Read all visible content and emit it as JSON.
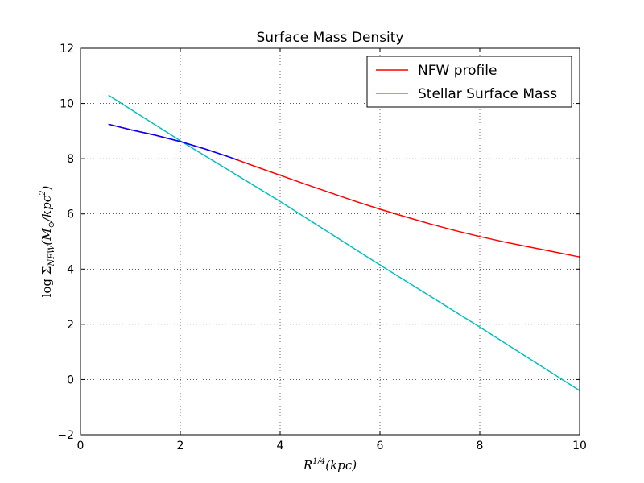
{
  "chart_data": {
    "type": "line",
    "title": "Surface Mass Density",
    "xlabel": "R^{1/4}(kpc)",
    "ylabel": "log Σ_{NFW}(M_⊙/kpc^2)",
    "xlim": [
      0,
      10
    ],
    "ylim": [
      -2,
      12
    ],
    "xticks": [
      0,
      2,
      4,
      6,
      8,
      10
    ],
    "yticks": [
      -2,
      0,
      2,
      4,
      6,
      8,
      10,
      12
    ],
    "xtick_labels": [
      "0",
      "2",
      "4",
      "6",
      "8",
      "10"
    ],
    "ytick_labels": [
      "−2",
      "0",
      "2",
      "4",
      "6",
      "8",
      "10",
      "12"
    ],
    "grid": true,
    "legend_position": "top-right",
    "series": [
      {
        "name": "NFW profile",
        "color": "#ff0000",
        "x": [
          0.56,
          1.0,
          1.5,
          2.0,
          2.5,
          3.0,
          3.5,
          4.0,
          4.5,
          5.0,
          5.5,
          6.0,
          6.5,
          7.0,
          7.5,
          8.0,
          8.5,
          9.0,
          9.5,
          10.0
        ],
        "y": [
          9.25,
          9.05,
          8.85,
          8.62,
          8.35,
          8.05,
          7.72,
          7.4,
          7.08,
          6.77,
          6.46,
          6.17,
          5.9,
          5.64,
          5.4,
          5.18,
          4.98,
          4.8,
          4.62,
          4.44
        ]
      },
      {
        "name": "Stellar Surface Mass",
        "color": "#00bfbf",
        "x": [
          0.56,
          2.0,
          4.0,
          6.0,
          8.0,
          10.0
        ],
        "y": [
          10.3,
          8.65,
          6.45,
          4.15,
          1.9,
          -0.4
        ]
      }
    ],
    "overlap_segment": {
      "color": "#0000ff",
      "x": [
        0.56,
        1.0,
        1.5,
        2.0,
        2.5,
        3.0,
        3.15
      ],
      "y": [
        9.25,
        9.05,
        8.85,
        8.62,
        8.35,
        8.05,
        7.95
      ]
    }
  }
}
